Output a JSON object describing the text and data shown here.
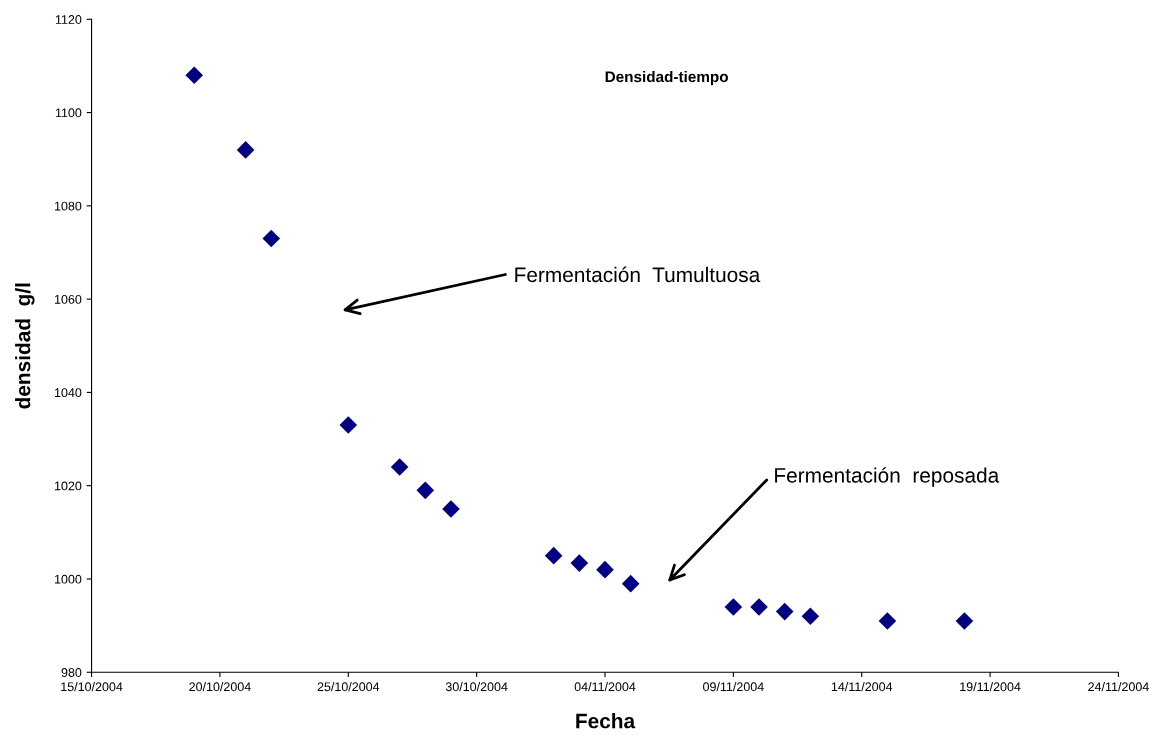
{
  "chart_data": {
    "type": "scatter",
    "title": "Densidad-tiempo",
    "xlabel": "Fecha",
    "ylabel": "densidad  g/l",
    "x": [
      "2004-10-19",
      "2004-10-21",
      "2004-10-22",
      "2004-10-25",
      "2004-10-27",
      "2004-10-28",
      "2004-10-29",
      "2004-11-02",
      "2004-11-03",
      "2004-11-04",
      "2004-11-05",
      "2004-11-09",
      "2004-11-10",
      "2004-11-11",
      "2004-11-12",
      "2004-11-15",
      "2004-11-18"
    ],
    "series": [
      {
        "color": "#000080",
        "values": [
          1108,
          1092,
          1073,
          1033,
          1024,
          1019,
          1015,
          1005,
          1003.4,
          1002,
          999,
          994,
          994,
          993,
          992,
          991,
          991
        ]
      }
    ],
    "marker": "diamond",
    "grid": false,
    "legend": false,
    "xlim": [
      "2004-10-15",
      "2004-11-24"
    ],
    "xticks": [
      {
        "value": "2004-10-15",
        "label": "15/10/2004"
      },
      {
        "value": "2004-10-20",
        "label": "20/10/2004"
      },
      {
        "value": "2004-10-25",
        "label": "25/10/2004"
      },
      {
        "value": "2004-10-30",
        "label": "30/10/2004"
      },
      {
        "value": "2004-11-04",
        "label": "04/11/2004"
      },
      {
        "value": "2004-11-09",
        "label": "09/11/2004"
      },
      {
        "value": "2004-11-14",
        "label": "14/11/2004"
      },
      {
        "value": "2004-11-19",
        "label": "19/11/2004"
      },
      {
        "value": "2004-11-24",
        "label": "24/11/2004"
      }
    ],
    "ylim": [
      980,
      1120
    ],
    "yticks": [
      980,
      1000,
      1020,
      1040,
      1060,
      1080,
      1100,
      1120
    ],
    "annotations": [
      "Fermentación  Tumultuosa",
      "Fermentación  reposada"
    ]
  }
}
